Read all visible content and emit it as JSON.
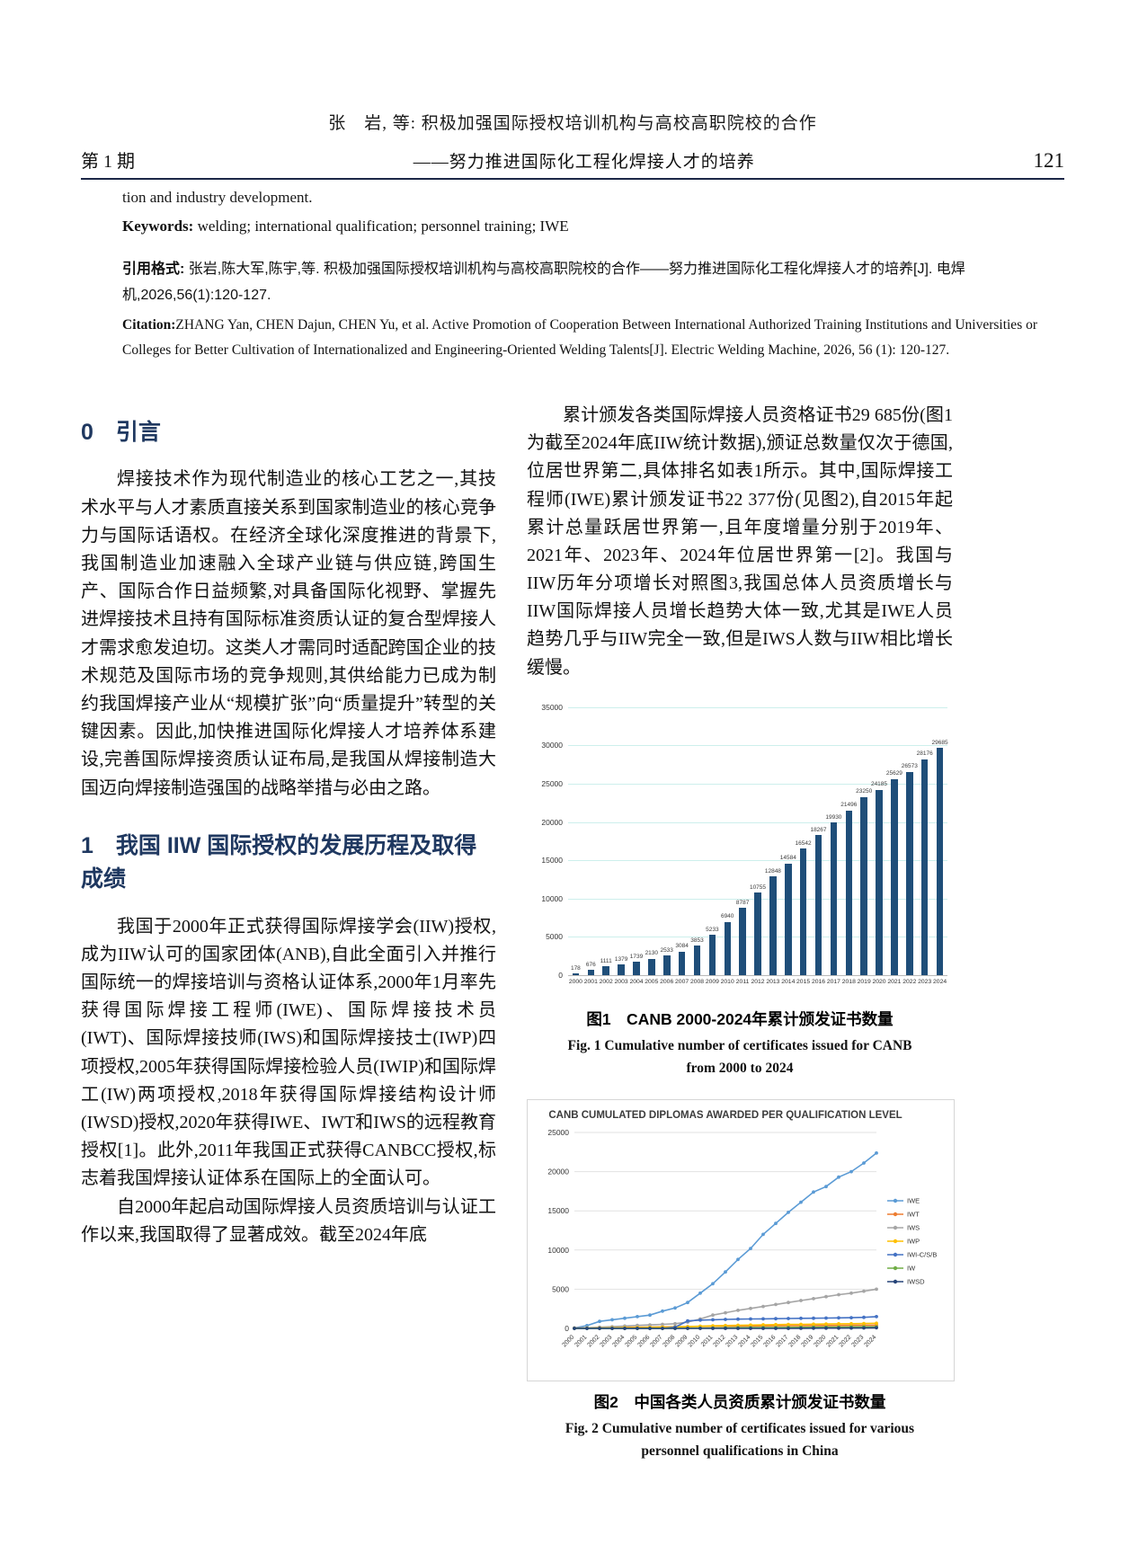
{
  "header": {
    "line1": "张　岩, 等: 积极加强国际授权培训机构与高校高职院校的合作",
    "issue": "第 1 期",
    "line2": "——努力推进国际化工程化焊接人才的培养",
    "page_number": "121"
  },
  "front_matter": {
    "abstract_tail": "tion and industry development.",
    "keywords_label": "Keywords:",
    "keywords_text": " welding; international qualification; personnel training; IWE",
    "cite_label": "引用格式: ",
    "cite_text": "张岩,陈大军,陈宇,等. 积极加强国际授权培训机构与高校高职院校的合作——努力推进国际化工程化焊接人才的培养[J]. 电焊机,2026,56(1):120-127.",
    "citation_label": "Citation:",
    "citation_text": "ZHANG Yan, CHEN Dajun, CHEN Yu, et al. Active Promotion of Cooperation Between International Authorized Training Institutions and Universities or Colleges for Better Cultivation of Internationalized and Engineering-Oriented Welding Talents[J]. Electric Welding Machine, 2026, 56 (1): 120-127."
  },
  "sections": {
    "s0_title": "0　引言",
    "s0_p1": "焊接技术作为现代制造业的核心工艺之一,其技术水平与人才素质直接关系到国家制造业的核心竞争力与国际话语权。在经济全球化深度推进的背景下,我国制造业加速融入全球产业链与供应链,跨国生产、国际合作日益频繁,对具备国际化视野、掌握先进焊接技术且持有国际标准资质认证的复合型焊接人才需求愈发迫切。这类人才需同时适配跨国企业的技术规范及国际市场的竞争规则,其供给能力已成为制约我国焊接产业从“规模扩张”向“质量提升”转型的关键因素。因此,加快推进国际化焊接人才培养体系建设,完善国际焊接资质认证布局,是我国从焊接制造大国迈向焊接制造强国的战略举措与必由之路。",
    "s1_title": "1　我国 IIW 国际授权的发展历程及取得成绩",
    "s1_p1": "我国于2000年正式获得国际焊接学会(IIW)授权,成为IIW认可的国家团体(ANB),自此全面引入并推行国际统一的焊接培训与资格认证体系,2000年1月率先获得国际焊接工程师(IWE)、国际焊接技术员(IWT)、国际焊接技师(IWS)和国际焊接技士(IWP)四项授权,2005年获得国际焊接检验人员(IWIP)和国际焊工(IW)两项授权,2018年获得国际焊接结构设计师(IWSD)授权,2020年获得IWE、IWT和IWS的远程教育授权[1]。此外,2011年我国正式获得CANBCC授权,标志着我国焊接认证体系在国际上的全面认可。",
    "s1_p2": "自2000年起启动国际焊接人员资质培训与认证工作以来,我国取得了显著成效。截至2024年底",
    "right_p1": "累计颁发各类国际焊接人员资格证书29 685份(图1为截至2024年底IIW统计数据),颁证总数量仅次于德国,位居世界第二,具体排名如表1所示。其中,国际焊接工程师(IWE)累计颁发证书22 377份(见图2),自2015年起累计总量跃居世界第一,且年度增量分别于2019年、2021年、2023年、2024年位居世界第一[2]。我国与IIW历年分项增长对照图3,我国总体人员资质增长与IIW国际焊接人员增长趋势大体一致,尤其是IWE人员趋势几乎与IIW完全一致,但是IWS人数与IIW相比增长缓慢。"
  },
  "figures": {
    "fig1_caption_zh": "图1　CANB 2000-2024年累计颁发证书数量",
    "fig1_caption_en": "Fig. 1   Cumulative number of certificates issued for CANB from 2000 to 2024",
    "fig2_caption_zh": "图2　中国各类人员资质累计颁发证书数量",
    "fig2_caption_en": "Fig. 2   Cumulative number of certificates issued for various personnel qualifications in China"
  },
  "chart_data": [
    {
      "type": "bar",
      "title": "",
      "categories": [
        "2000",
        "2001",
        "2002",
        "2003",
        "2004",
        "2005",
        "2006",
        "2007",
        "2008",
        "2009",
        "2010",
        "2011",
        "2012",
        "2013",
        "2014",
        "2015",
        "2016",
        "2017",
        "2018",
        "2019",
        "2020",
        "2021",
        "2022",
        "2023",
        "2024"
      ],
      "values": [
        178,
        676,
        1111,
        1379,
        1739,
        2130,
        2533,
        3084,
        3853,
        5233,
        6940,
        8787,
        10755,
        12848,
        14584,
        16542,
        18267,
        19930,
        21496,
        23250,
        24185,
        25629,
        26573,
        28176,
        29685
      ],
      "xlabel": "",
      "ylabel": "",
      "ylim": [
        0,
        35000
      ],
      "ytick_step": 5000,
      "grid": true,
      "bar_color": "#1F4E79",
      "grid_color": "#cdefec"
    },
    {
      "type": "line",
      "title": "CANB CUMULATED DIPLOMAS AWARDED PER QUALIFICATION LEVEL",
      "x": [
        "2000",
        "2001",
        "2002",
        "2003",
        "2004",
        "2005",
        "2006",
        "2007",
        "2008",
        "2009",
        "2010",
        "2011",
        "2012",
        "2013",
        "2014",
        "2015",
        "2016",
        "2017",
        "2018",
        "2019",
        "2020",
        "2021",
        "2022",
        "2023",
        "2024"
      ],
      "xlabel": "",
      "ylabel": "",
      "ylim": [
        0,
        25000
      ],
      "ytick_step": 5000,
      "grid": true,
      "legend_position": "right",
      "series": [
        {
          "name": "IWE",
          "color": "#5B9BD5",
          "values": [
            60,
            350,
            900,
            1100,
            1300,
            1500,
            1700,
            2200,
            2600,
            3300,
            4500,
            5700,
            7200,
            8800,
            10200,
            12000,
            13400,
            14800,
            16100,
            17400,
            18100,
            19300,
            20000,
            21100,
            22377
          ]
        },
        {
          "name": "IWT",
          "color": "#ED7D31",
          "values": [
            30,
            60,
            90,
            110,
            130,
            150,
            170,
            190,
            210,
            230,
            250,
            270,
            285,
            300,
            310,
            320,
            330,
            340,
            350,
            360,
            370,
            380,
            390,
            400,
            410
          ]
        },
        {
          "name": "IWS",
          "color": "#A5A5A5",
          "values": [
            20,
            80,
            150,
            220,
            300,
            380,
            450,
            520,
            600,
            800,
            1200,
            1700,
            2000,
            2300,
            2550,
            2800,
            3050,
            3300,
            3550,
            3800,
            4050,
            4300,
            4500,
            4750,
            5000
          ]
        },
        {
          "name": "IWP",
          "color": "#FFC000",
          "values": [
            10,
            30,
            50,
            70,
            90,
            110,
            130,
            150,
            180,
            220,
            280,
            330,
            370,
            400,
            430,
            460,
            480,
            500,
            520,
            540,
            560,
            580,
            600,
            620,
            650
          ]
        },
        {
          "name": "IWI-C/S/B",
          "color": "#4472C4",
          "values": [
            0,
            0,
            0,
            0,
            0,
            0,
            0,
            0,
            150,
            950,
            1050,
            1100,
            1150,
            1180,
            1200,
            1220,
            1240,
            1260,
            1280,
            1300,
            1320,
            1340,
            1370,
            1410,
            1500
          ]
        },
        {
          "name": "IW",
          "color": "#70AD47",
          "values": [
            0,
            0,
            0,
            0,
            0,
            0,
            0,
            0,
            0,
            20,
            40,
            60,
            80,
            90,
            100,
            110,
            120,
            130,
            140,
            150,
            160,
            170,
            180,
            190,
            200
          ]
        },
        {
          "name": "IWSD",
          "color": "#264478",
          "values": [
            0,
            0,
            0,
            0,
            0,
            0,
            0,
            0,
            0,
            0,
            0,
            0,
            0,
            0,
            0,
            0,
            0,
            0,
            10,
            20,
            30,
            40,
            50,
            60,
            80
          ]
        }
      ]
    }
  ]
}
